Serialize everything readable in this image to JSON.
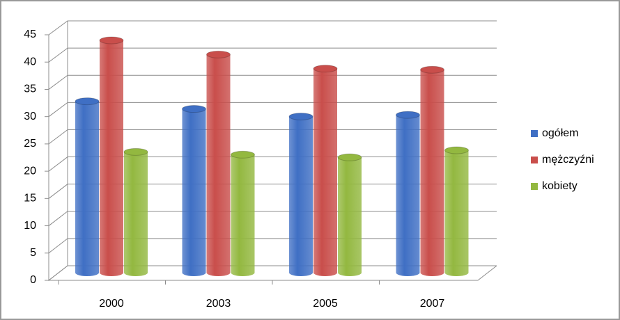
{
  "chart_data": {
    "type": "bar",
    "categories": [
      "2000",
      "2003",
      "2005",
      "2007"
    ],
    "series": [
      {
        "name": "ogółem",
        "color": "#3f6fc4",
        "values": [
          31.5,
          30.1,
          28.7,
          29.0
        ]
      },
      {
        "name": "mężczyźni",
        "color": "#c94e4b",
        "values": [
          42.7,
          40.1,
          37.5,
          37.3
        ]
      },
      {
        "name": "kobiety",
        "color": "#93b840",
        "values": [
          22.2,
          21.7,
          21.2,
          22.5
        ]
      }
    ],
    "ylim": [
      0,
      45
    ],
    "yticks": [
      0,
      5,
      10,
      15,
      20,
      25,
      30,
      35,
      40,
      45
    ],
    "grid": true,
    "legend": "right"
  }
}
